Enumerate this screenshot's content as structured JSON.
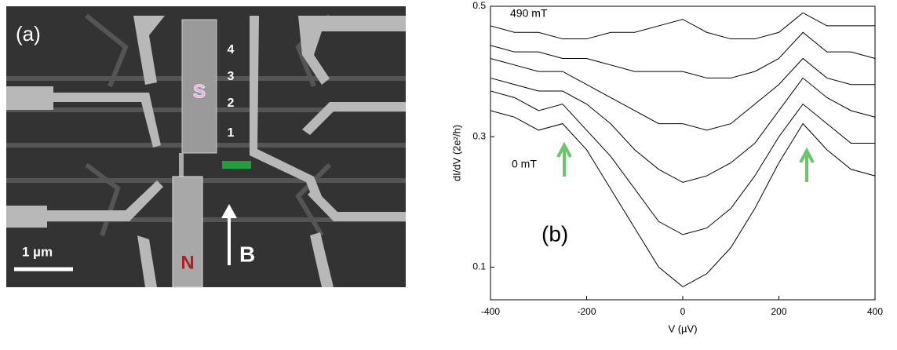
{
  "panel_a": {
    "label": "(a)",
    "superconductor": "S",
    "normal": "N",
    "field": "B",
    "scale_bar": "1 µm",
    "contacts": [
      "1",
      "2",
      "3",
      "4"
    ]
  },
  "chart_data": {
    "type": "line",
    "panel_label": "(b)",
    "xlabel": "V (µV)",
    "ylabel": "dI/dV (2e²/h)",
    "annotations": [
      "490 mT",
      "0 mT"
    ],
    "x": [
      -400,
      -350,
      -300,
      -250,
      -200,
      -150,
      -100,
      -50,
      0,
      50,
      100,
      150,
      200,
      250,
      300,
      350,
      400
    ],
    "series": [
      {
        "color": "#000000",
        "values": [
          0.34,
          0.33,
          0.31,
          0.32,
          0.28,
          0.22,
          0.16,
          0.1,
          0.07,
          0.09,
          0.13,
          0.19,
          0.26,
          0.32,
          0.28,
          0.25,
          0.24
        ]
      },
      {
        "color": "#000000",
        "values": [
          0.37,
          0.36,
          0.34,
          0.35,
          0.31,
          0.27,
          0.22,
          0.17,
          0.15,
          0.16,
          0.19,
          0.24,
          0.3,
          0.35,
          0.32,
          0.29,
          0.29
        ]
      },
      {
        "color": "#000000",
        "values": [
          0.39,
          0.38,
          0.37,
          0.37,
          0.35,
          0.32,
          0.28,
          0.25,
          0.23,
          0.24,
          0.26,
          0.29,
          0.34,
          0.39,
          0.36,
          0.34,
          0.33
        ]
      },
      {
        "color": "#000000",
        "values": [
          0.42,
          0.41,
          0.4,
          0.4,
          0.38,
          0.36,
          0.34,
          0.32,
          0.32,
          0.31,
          0.32,
          0.35,
          0.38,
          0.42,
          0.39,
          0.38,
          0.38
        ]
      },
      {
        "color": "#000000",
        "values": [
          0.44,
          0.43,
          0.43,
          0.42,
          0.42,
          0.41,
          0.4,
          0.4,
          0.4,
          0.39,
          0.39,
          0.4,
          0.42,
          0.46,
          0.43,
          0.43,
          0.42
        ]
      },
      {
        "color": "#000000",
        "values": [
          0.47,
          0.46,
          0.46,
          0.45,
          0.45,
          0.46,
          0.46,
          0.47,
          0.48,
          0.46,
          0.45,
          0.45,
          0.46,
          0.49,
          0.47,
          0.47,
          0.47
        ]
      }
    ],
    "xlim": [
      -400,
      400
    ],
    "ylim": [
      0.05,
      0.5
    ],
    "xticks": [
      -400,
      -200,
      0,
      200,
      400
    ],
    "yticks": [
      0.1,
      0.3,
      0.5
    ]
  }
}
